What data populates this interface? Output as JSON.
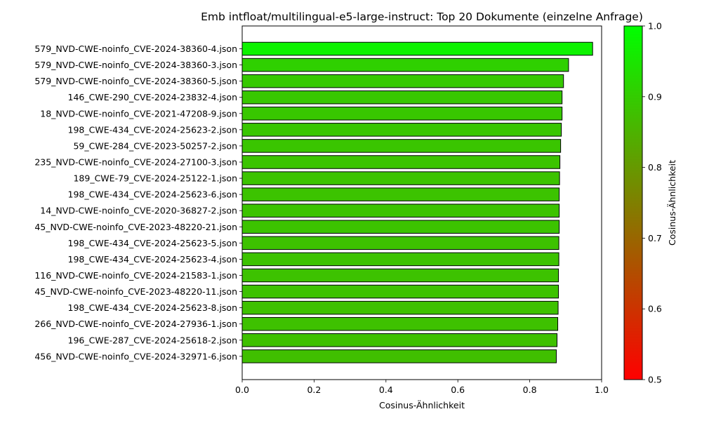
{
  "chart_data": {
    "type": "bar",
    "orientation": "horizontal",
    "title": "Emb intfloat/multilingual-e5-large-instruct: Top 20 Dokumente (einzelne Anfrage)",
    "xlabel": "Cosinus-Ähnlichkeit",
    "xlim": [
      0.0,
      1.0
    ],
    "xticks": [
      "0.0",
      "0.2",
      "0.4",
      "0.6",
      "0.8",
      "1.0"
    ],
    "grid": false,
    "categories": [
      "579_NVD-CWE-noinfo_CVE-2024-38360-4.json",
      "579_NVD-CWE-noinfo_CVE-2024-38360-3.json",
      "579_NVD-CWE-noinfo_CVE-2024-38360-5.json",
      "146_CWE-290_CVE-2024-23832-4.json",
      "18_NVD-CWE-noinfo_CVE-2021-47208-9.json",
      "198_CWE-434_CVE-2024-25623-2.json",
      "59_CWE-284_CVE-2023-50257-2.json",
      "235_NVD-CWE-noinfo_CVE-2024-27100-3.json",
      "189_CWE-79_CVE-2024-25122-1.json",
      "198_CWE-434_CVE-2024-25623-6.json",
      "14_NVD-CWE-noinfo_CVE-2020-36827-2.json",
      "45_NVD-CWE-noinfo_CVE-2023-48220-21.json",
      "198_CWE-434_CVE-2024-25623-5.json",
      "198_CWE-434_CVE-2024-25623-4.json",
      "116_NVD-CWE-noinfo_CVE-2024-21583-1.json",
      "45_NVD-CWE-noinfo_CVE-2023-48220-11.json",
      "198_CWE-434_CVE-2024-25623-8.json",
      "266_NVD-CWE-noinfo_CVE-2024-27936-1.json",
      "196_CWE-287_CVE-2024-25618-2.json",
      "456_NVD-CWE-noinfo_CVE-2024-32971-6.json"
    ],
    "values": [
      0.975,
      0.908,
      0.894,
      0.89,
      0.89,
      0.888,
      0.886,
      0.884,
      0.883,
      0.882,
      0.882,
      0.882,
      0.881,
      0.881,
      0.88,
      0.88,
      0.879,
      0.878,
      0.876,
      0.874
    ],
    "colorbar": {
      "label": "Cosinus-Ähnlichkeit",
      "range": [
        0.5,
        1.0
      ],
      "ticks": [
        "0.5",
        "0.6",
        "0.7",
        "0.8",
        "0.9",
        "1.0"
      ],
      "color_low": "#ff0000",
      "color_high": "#00ff00"
    },
    "bar_edge_color": "#000000"
  }
}
